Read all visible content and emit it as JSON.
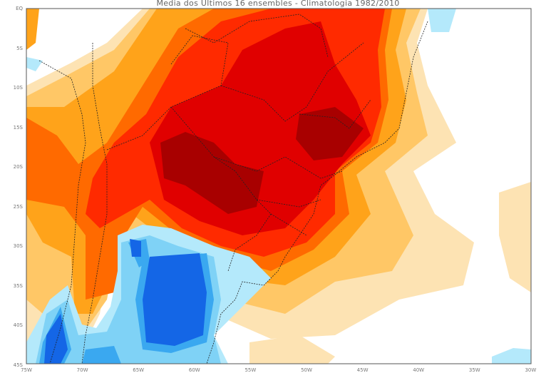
{
  "title": "Media dos Ultimos 16 ensembles - Climatologia 1982/2010",
  "lat_labels": [
    "EQ",
    "5S",
    "10S",
    "15S",
    "20S",
    "25S",
    "30S",
    "35S",
    "40S",
    "45S"
  ],
  "lon_labels": [
    "75W",
    "70W",
    "65W",
    "60W",
    "55W",
    "50W",
    "45W",
    "40W",
    "35W",
    "30W"
  ],
  "colors": {
    "warm": [
      "#fde3b3",
      "#ffc766",
      "#ffa31a",
      "#ff6a00",
      "#ff2a00",
      "#e00000",
      "#a80000"
    ],
    "cold": [
      "#b4e9fb",
      "#7fd2f6",
      "#3aa8f0",
      "#1466e6"
    ]
  }
}
